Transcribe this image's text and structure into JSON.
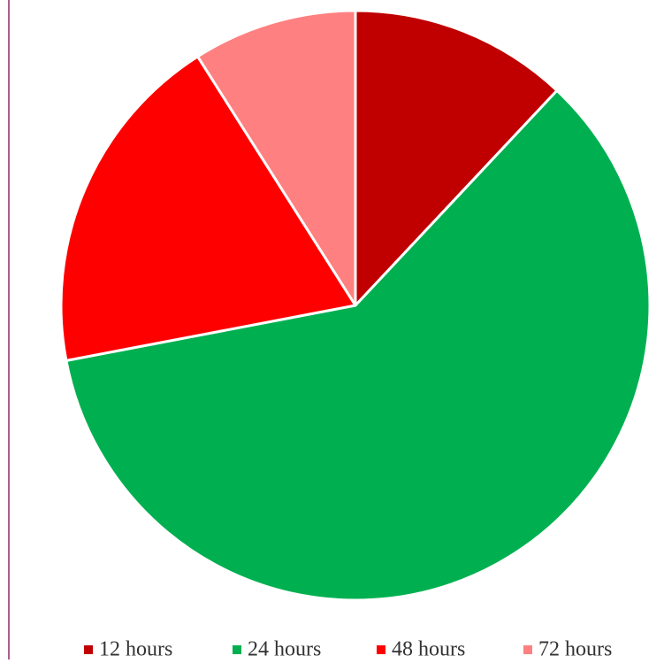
{
  "chart_data": {
    "type": "pie",
    "categories": [
      "12 hours",
      "24 hours",
      "48 hours",
      "72 hours"
    ],
    "values": [
      12,
      60,
      19,
      9
    ],
    "colors": [
      "#c00000",
      "#00b050",
      "#ff0000",
      "#ff8080"
    ],
    "legend": "bottom"
  }
}
